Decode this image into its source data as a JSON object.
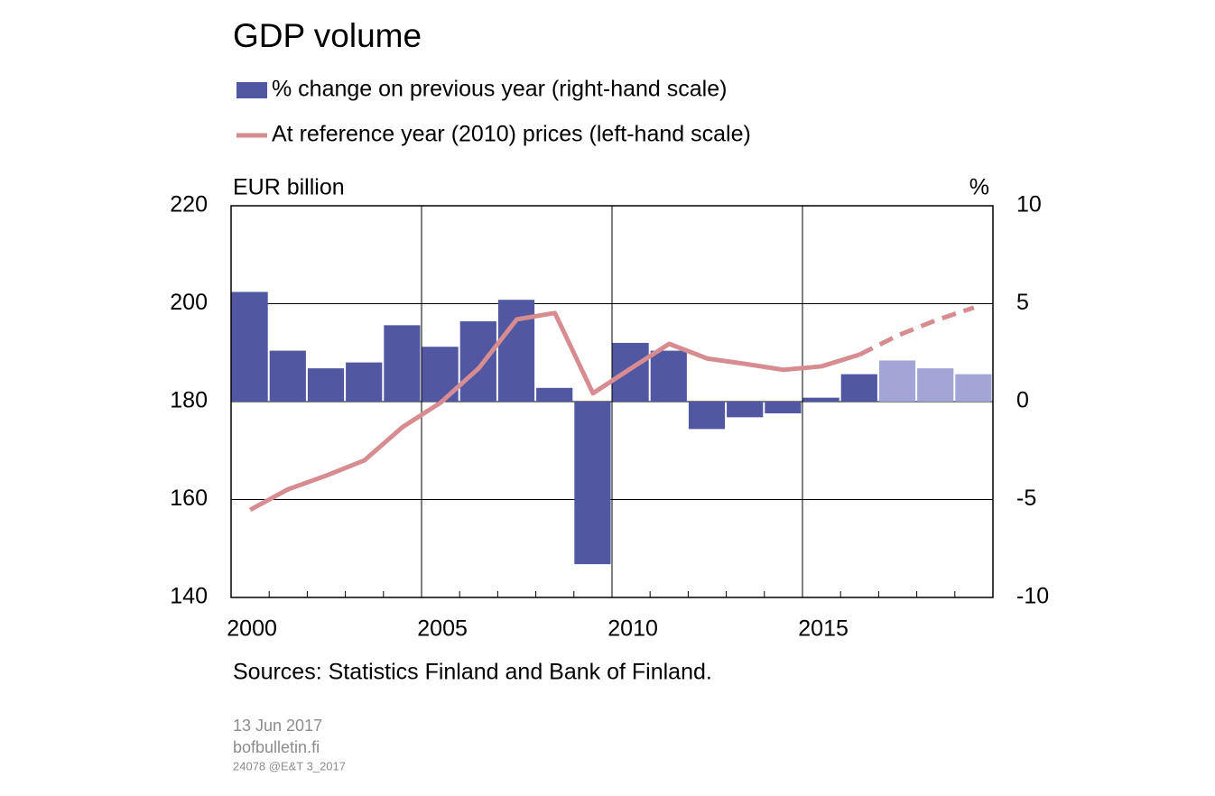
{
  "chart_data": {
    "type": "bar-line",
    "title": "GDP volume",
    "y_label": "EUR billion",
    "y2_label": "%",
    "categories": [
      "2000",
      "2001",
      "2002",
      "2003",
      "2004",
      "2005",
      "2006",
      "2007",
      "2008",
      "2009",
      "2010",
      "2011",
      "2012",
      "2013",
      "2014",
      "2015",
      "2016",
      "2017",
      "2018",
      "2019"
    ],
    "x_tick_labels": [
      {
        "value": "2000",
        "label": "2000"
      },
      {
        "value": "2005",
        "label": "2005"
      },
      {
        "value": "2010",
        "label": "2010"
      },
      {
        "value": "2015",
        "label": "2015"
      }
    ],
    "series": [
      {
        "name": "% change on previous year (right-hand scale)",
        "type": "bar",
        "axis": "y2",
        "color": "#5157a0",
        "colors": [
          "#5157a0",
          "#5157a0",
          "#5157a0",
          "#5157a0",
          "#5157a0",
          "#5157a0",
          "#5157a0",
          "#5157a0",
          "#5157a0",
          "#5157a0",
          "#5157a0",
          "#5157a0",
          "#5157a0",
          "#5157a0",
          "#5157a0",
          "#5157a0",
          "#5157a0",
          "#a3a5d6",
          "#a3a5d6",
          "#a3a5d6"
        ],
        "values": [
          5.6,
          2.6,
          1.7,
          2.0,
          3.9,
          2.8,
          4.1,
          5.2,
          0.7,
          -8.3,
          3.0,
          2.6,
          -1.4,
          -0.8,
          -0.6,
          0.2,
          1.4,
          2.1,
          1.7,
          1.4
        ]
      },
      {
        "name": "At reference year (2010) prices (left-hand scale)",
        "type": "line",
        "axis": "y",
        "color": "#d68c91",
        "dashed": [
          false,
          false,
          false,
          false,
          false,
          false,
          false,
          false,
          false,
          false,
          false,
          false,
          false,
          false,
          false,
          false,
          false,
          true,
          true,
          true
        ],
        "values": [
          157.9,
          162.1,
          164.9,
          168.0,
          174.8,
          179.8,
          186.8,
          196.8,
          198.1,
          181.7,
          186.8,
          191.8,
          188.8,
          187.7,
          186.5,
          187.2,
          189.6,
          193.5,
          196.6,
          199.2
        ]
      }
    ],
    "ylim": [
      140,
      220
    ],
    "yticks": [
      140,
      160,
      180,
      200,
      220
    ],
    "y2lim": [
      -10,
      10
    ],
    "y2ticks": [
      -10,
      -5,
      0,
      5,
      10
    ],
    "grid": true,
    "source": "Sources: Statistics Finland and Bank of Finland.",
    "date": "13 Jun 2017",
    "site": "bofbulletin.fi",
    "code": "24078 @E&T 3_2017"
  }
}
